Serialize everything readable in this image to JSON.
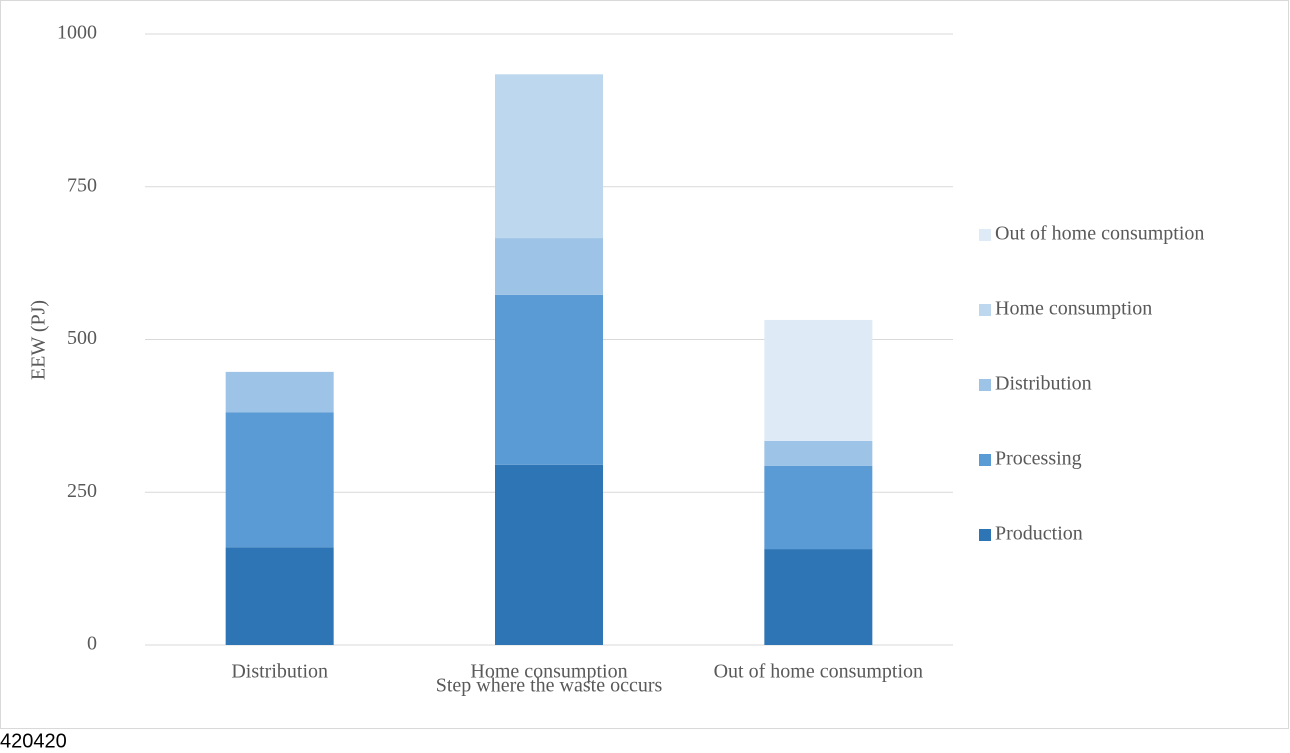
{
  "chart_data": {
    "type": "stacked_bar",
    "x_label": "Step where the waste occurs",
    "y_label": "EEW (PJ)",
    "categories": [
      "Distribution",
      "Home consumption",
      "Out of home consumption"
    ],
    "series": [
      {
        "name": "Production",
        "color": "#2e75b6",
        "values": [
          160,
          295,
          157
        ]
      },
      {
        "name": "Processing",
        "color": "#5b9bd5",
        "values": [
          221,
          278,
          136
        ]
      },
      {
        "name": "Distribution",
        "color": "#9dc3e6",
        "values": [
          66,
          93,
          41
        ]
      },
      {
        "name": "Home consumption",
        "color": "#bdd7ee",
        "values": [
          0,
          268,
          0
        ]
      },
      {
        "name": "Out of home consumption",
        "color": "#deebf7",
        "values": [
          0,
          0,
          198
        ]
      }
    ],
    "ylim": [
      0,
      1000
    ],
    "yticks": [
      0,
      250,
      500,
      750,
      1000
    ],
    "grid": true,
    "legend": "right"
  },
  "footer": "420420"
}
